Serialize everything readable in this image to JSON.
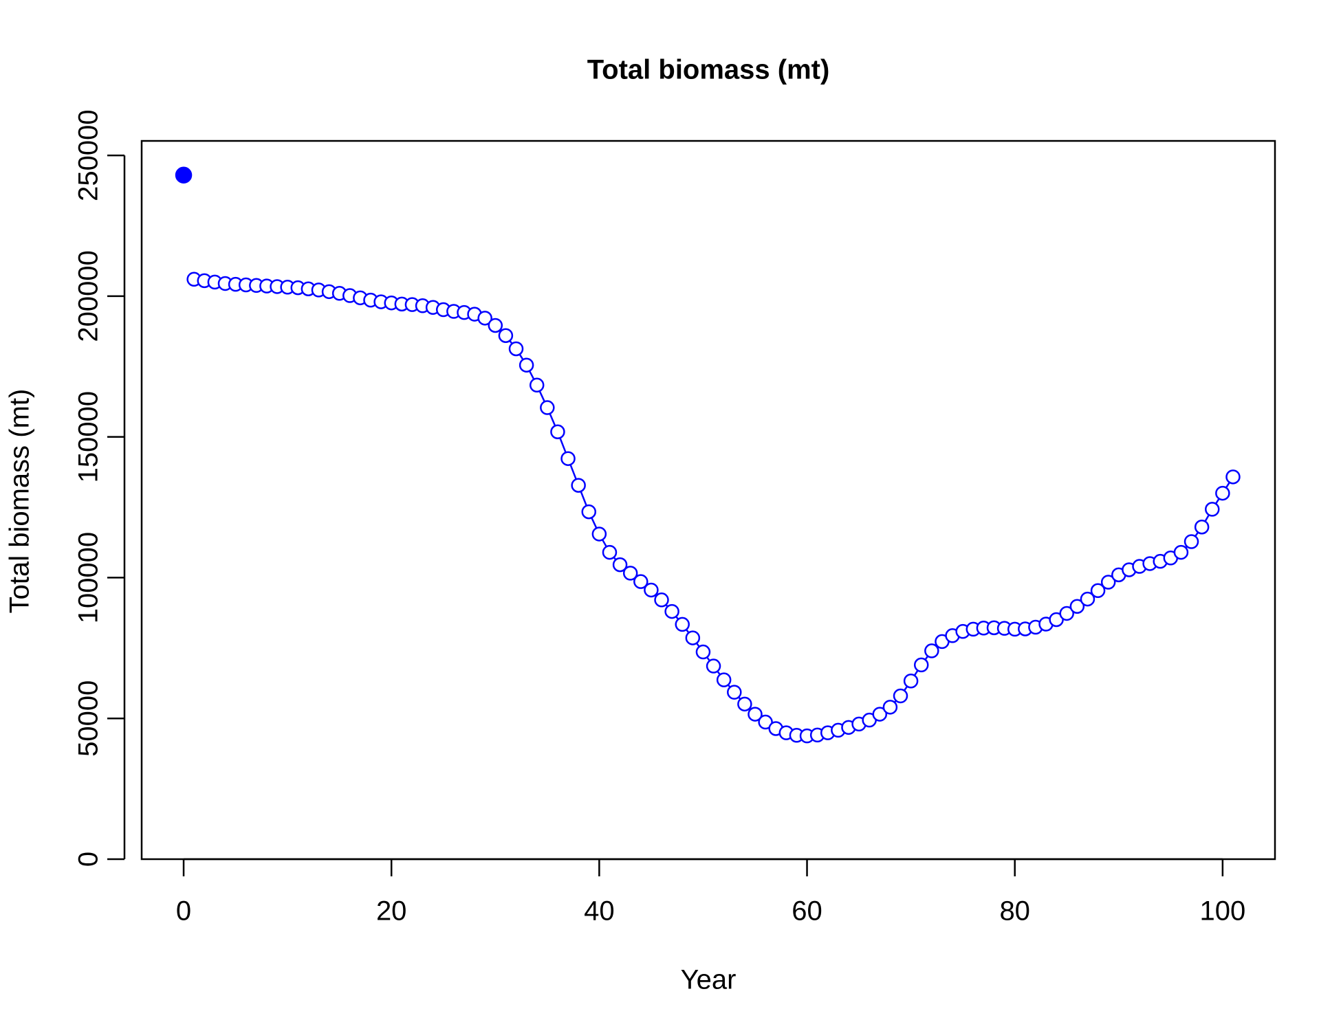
{
  "chart_data": {
    "type": "line",
    "title": "Total biomass (mt)",
    "x_label": "Year",
    "y_label": "Total biomass (mt)",
    "xlim": [
      -4.04,
      105.04
    ],
    "ylim": [
      0,
      255150
    ],
    "xticks": [
      0,
      20,
      40,
      60,
      80,
      100
    ],
    "yticks": [
      0,
      50000,
      100000,
      150000,
      200000,
      250000
    ],
    "series": [
      {
        "color": "#0000ff",
        "marker": "filled",
        "line": false,
        "x": [
          0
        ],
        "values": [
          243000
        ]
      },
      {
        "color": "#0000ff",
        "marker": "open",
        "line": true,
        "x": [
          1,
          2,
          3,
          4,
          5,
          6,
          7,
          8,
          9,
          10,
          11,
          12,
          13,
          14,
          15,
          16,
          17,
          18,
          19,
          20,
          21,
          22,
          23,
          24,
          25,
          26,
          27,
          28,
          29,
          30,
          31,
          32,
          33,
          34,
          35,
          36,
          37,
          38,
          39,
          40,
          41,
          42,
          43,
          44,
          45,
          46,
          47,
          48,
          49,
          50,
          51,
          52,
          53,
          54,
          55,
          56,
          57,
          58,
          59,
          60,
          61,
          62,
          63,
          64,
          65,
          66,
          67,
          68,
          69,
          70,
          71,
          72,
          73,
          74,
          75,
          76,
          77,
          78,
          79,
          80,
          81,
          82,
          83,
          84,
          85,
          86,
          87,
          88,
          89,
          90,
          91,
          92,
          93,
          94,
          95,
          96,
          97,
          98,
          99,
          100,
          101
        ],
        "values": [
          206000,
          205500,
          205000,
          204500,
          204200,
          204000,
          203800,
          203600,
          203400,
          203200,
          203000,
          202600,
          202200,
          201600,
          201000,
          200200,
          199400,
          198600,
          198000,
          197600,
          197200,
          197000,
          196600,
          196000,
          195200,
          194600,
          194200,
          193600,
          192200,
          189600,
          186000,
          181300,
          175500,
          168400,
          160400,
          151800,
          142300,
          132800,
          123400,
          115500,
          109000,
          104600,
          101600,
          98600,
          95600,
          92100,
          88000,
          83400,
          78600,
          73600,
          68600,
          63700,
          59300,
          55100,
          51500,
          48700,
          46400,
          44900,
          44000,
          43800,
          44100,
          44900,
          45800,
          46800,
          48000,
          49400,
          51500,
          54000,
          58000,
          63300,
          69000,
          74000,
          77300,
          79400,
          80900,
          81700,
          82100,
          82200,
          82000,
          81700,
          81800,
          82400,
          83500,
          85100,
          87300,
          89800,
          92400,
          95400,
          98400,
          101000,
          102800,
          104000,
          105000,
          105800,
          107000,
          109000,
          112800,
          118000,
          124300,
          130000,
          135800
        ]
      }
    ]
  }
}
